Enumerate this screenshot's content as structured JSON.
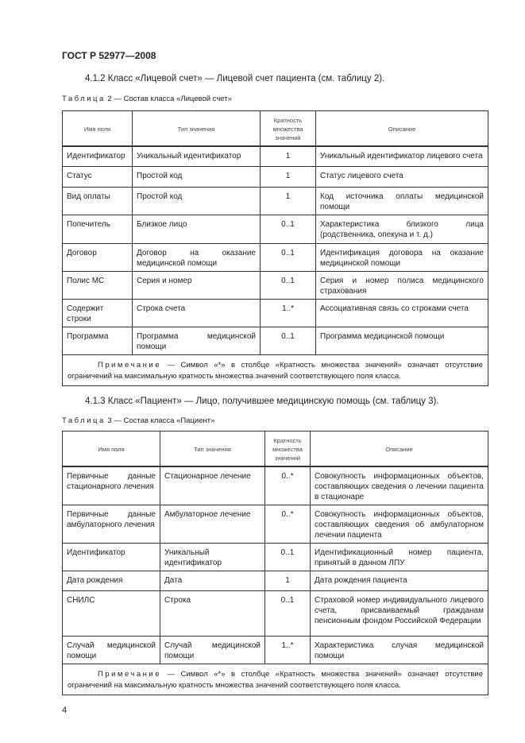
{
  "header": "ГОСТ Р 52977—2008",
  "section_412": "4.1.2 Класс «Лицевой счет» — Лицевой счет пациента (см. таблицу 2).",
  "table2": {
    "caption_prefix": "Таблица",
    "caption": "2 — Состав класса «Лицевой счет»",
    "columns": [
      "Имя поля",
      "Тип значения",
      "Кратность множества значений",
      "Описание"
    ],
    "rows": [
      [
        "Идентификатор",
        "Уникальный идентификатор",
        "1",
        "Уникальный идентификатор лицевого счета"
      ],
      [
        "Статус",
        "Простой код",
        "1",
        "Статус лицевого счета"
      ],
      [
        "Вид оплаты",
        "Простой код",
        "1",
        "Код источника оплаты медицинской помощи"
      ],
      [
        "Попечитель",
        "Близкое лицо",
        "0..1",
        "Характеристика близкого лица (родственника, опекуна и т. д.)"
      ],
      [
        "Договор",
        "Договор на оказание медицинской помощи",
        "0..1",
        "Идентификация договора на оказание медицинской помощи"
      ],
      [
        "Полис МС",
        "Серия и номер",
        "0..1",
        "Серия и номер полиса медицинского страхования"
      ],
      [
        "Содержит строки",
        "Строка счета",
        "1..*",
        "Ассоциативная связь со строками счета"
      ],
      [
        "Программа",
        "Программа медицинской помощи",
        "0..1",
        "Программа медицинской помощи"
      ]
    ],
    "note_prefix": "Примечание",
    "note": " — Символ «*» в столбце «Кратность множества значений» означает отсутствие ограничений на максимальную кратность множества значений соответствующего поля класса."
  },
  "section_413": "4.1.3 Класс «Пациент» — Лицо, получившее медицинскую помощь (см. таблицу 3).",
  "table3": {
    "caption_prefix": "Таблица",
    "caption": "3 — Состав класса «Пациент»",
    "columns": [
      "Имя поля",
      "Тип значения",
      "Кратность множества значений",
      "Описание"
    ],
    "rows": [
      [
        "Первичные данные стационарного лечения",
        "Стационарное лечение",
        "0..*",
        "Совокупность информационных объектов, составляющих сведения о лечении пациента в стационаре"
      ],
      [
        "Первичные данные амбулаторного лечения",
        "Амбулаторное лечение",
        "0..*",
        "Совокупность информационных объектов, составляющих сведения об амбулаторном лечении пациента"
      ],
      [
        "Идентификатор",
        "Уникальный идентификатор",
        "0..1",
        "Идентификационный номер пациента, принятый в данном ЛПУ"
      ],
      [
        "Дата рождения",
        "Дата",
        "1",
        "Дата рождения пациента"
      ],
      [
        "СНИЛС",
        "Строка",
        "0..1",
        "Страховой номер индивидуального лицевого счета, присваиваемый гражданам пенсионным фондом Российской Федерации"
      ],
      [
        "Случай медицинской помощи",
        "Случай медицинской помощи",
        "1..*",
        "Характеристика случая медицинской помощи"
      ]
    ],
    "note_prefix": "Примечание",
    "note": " — Символ «*» в столбце «Кратность множества значений» означает отсутствие ограничений на максимальную кратность множества значений соответствующего поля класса."
  },
  "page_number": "4"
}
